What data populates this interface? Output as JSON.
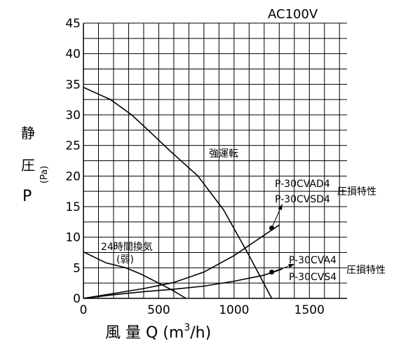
{
  "chart_data": {
    "type": "line",
    "title": "AC100V",
    "xlabel": "風 量 Q (m3/h)",
    "xlabel_parts": {
      "main": "風 量 Q (m",
      "sup": "3",
      "tail": "/h)"
    },
    "ylabel": "静 圧 P (Pa)",
    "ylabel_parts": {
      "kanji_top": "静",
      "kanji_mid": "圧",
      "letter": "P",
      "unit": "(Pa)"
    },
    "xlim": [
      0,
      1750
    ],
    "ylim": [
      0,
      45
    ],
    "x_ticks": [
      0,
      500,
      1000,
      1500
    ],
    "y_ticks": [
      0,
      5,
      10,
      15,
      20,
      25,
      30,
      35,
      40,
      45
    ],
    "grid": true,
    "series": [
      {
        "name": "強運転",
        "kind": "fan",
        "points": [
          [
            0,
            34.5
          ],
          [
            180,
            32.5
          ],
          [
            320,
            30
          ],
          [
            430,
            27.5
          ],
          [
            580,
            24
          ],
          [
            760,
            20
          ],
          [
            930,
            14.5
          ],
          [
            1100,
            7
          ],
          [
            1250,
            0
          ]
        ]
      },
      {
        "name": "24時間換気 (弱)",
        "kind": "fan",
        "points": [
          [
            0,
            7.6
          ],
          [
            150,
            5.8
          ],
          [
            280,
            5
          ],
          [
            380,
            4
          ],
          [
            500,
            2.5
          ],
          [
            600,
            1.2
          ],
          [
            680,
            0
          ]
        ]
      },
      {
        "name": "P-30CVAD4 P-30CVSD4 圧損特性",
        "kind": "resistance",
        "points": [
          [
            0,
            0
          ],
          [
            200,
            0.8
          ],
          [
            400,
            1.6
          ],
          [
            600,
            2.6
          ],
          [
            800,
            4.3
          ],
          [
            1000,
            7.0
          ],
          [
            1150,
            9.5
          ],
          [
            1300,
            12.0
          ]
        ]
      },
      {
        "name": "P-30CVA4 P-30CVS4 圧損特性",
        "kind": "resistance",
        "points": [
          [
            0,
            0
          ],
          [
            200,
            0.6
          ],
          [
            400,
            1.1
          ],
          [
            600,
            1.5
          ],
          [
            800,
            2.0
          ],
          [
            1000,
            2.8
          ],
          [
            1200,
            3.8
          ],
          [
            1320,
            4.8
          ]
        ]
      }
    ],
    "labels": {
      "strong": "強運転",
      "weak_line1": "24時間換気",
      "weak_line2": "(弱)",
      "model_d1": "P-30CVAD4",
      "model_d2": "P-30CVSD4",
      "model_d_suffix": "圧損特性",
      "model_1": "P-30CVA4",
      "model_2": "P-30CVS4",
      "model_suffix": "圧損特性"
    },
    "markers": [
      {
        "label_ref": "model_d",
        "point": [
          1250,
          11.5
        ]
      },
      {
        "label_ref": "model",
        "point": [
          1250,
          4.3
        ]
      }
    ]
  }
}
